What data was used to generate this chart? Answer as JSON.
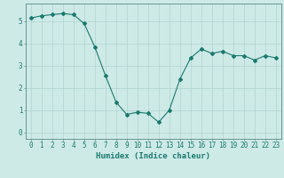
{
  "x": [
    0,
    1,
    2,
    3,
    4,
    5,
    6,
    7,
    8,
    9,
    10,
    11,
    12,
    13,
    14,
    15,
    16,
    17,
    18,
    19,
    20,
    21,
    22,
    23
  ],
  "y": [
    5.15,
    5.25,
    5.3,
    5.35,
    5.3,
    4.9,
    3.85,
    2.55,
    1.35,
    0.8,
    0.9,
    0.85,
    0.45,
    1.0,
    2.4,
    3.35,
    3.75,
    3.55,
    3.65,
    3.45,
    3.45,
    3.25,
    3.45,
    3.35
  ],
  "line_color": "#1a7a6e",
  "marker": "D",
  "marker_size": 2.0,
  "bg_color": "#ceeae7",
  "grid_color": "#afd4d0",
  "tick_color": "#1a7a6e",
  "axis_color": "#5a8a85",
  "xlabel": "Humidex (Indice chaleur)",
  "ylim": [
    -0.3,
    5.8
  ],
  "xlim": [
    -0.5,
    23.5
  ],
  "yticks": [
    0,
    1,
    2,
    3,
    4,
    5
  ],
  "xticks": [
    0,
    1,
    2,
    3,
    4,
    5,
    6,
    7,
    8,
    9,
    10,
    11,
    12,
    13,
    14,
    15,
    16,
    17,
    18,
    19,
    20,
    21,
    22,
    23
  ],
  "xlabel_fontsize": 6.5,
  "tick_fontsize": 5.5
}
